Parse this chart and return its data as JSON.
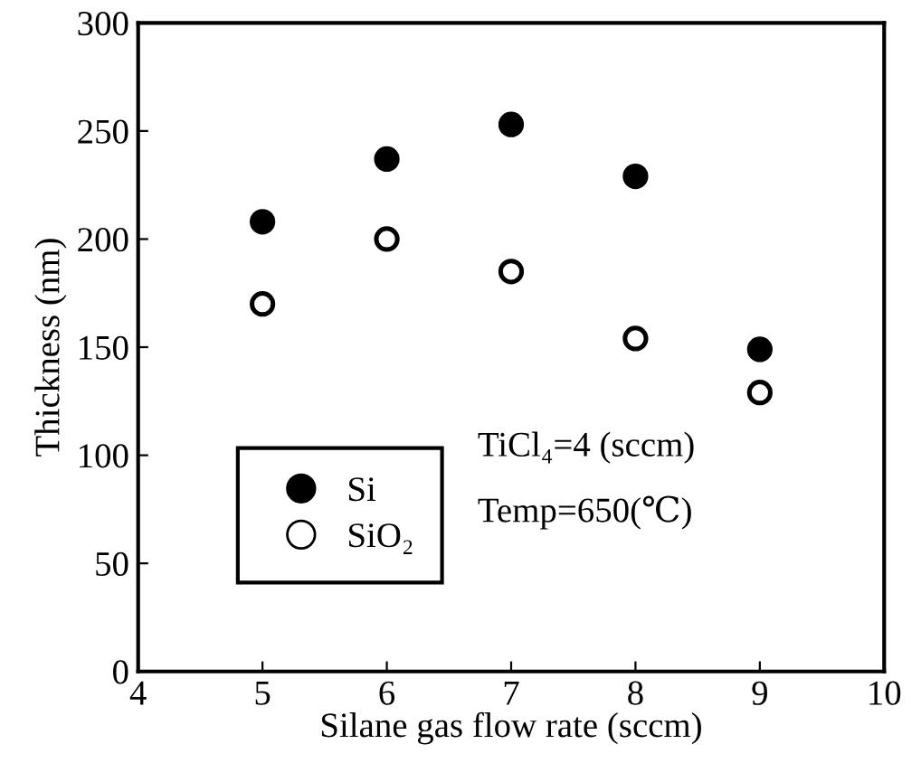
{
  "chart_data": {
    "type": "scatter",
    "xlabel": "Silane gas flow rate (sccm)",
    "ylabel": "Thickness (nm)",
    "x": [
      5,
      6,
      7,
      8,
      9
    ],
    "series": [
      {
        "name": "Si",
        "color": "#000000",
        "marker": "circle",
        "values": [
          208,
          237,
          253,
          229,
          149
        ]
      },
      {
        "name": "SiO₂",
        "color": "#ffffff",
        "marker": "circle",
        "values": [
          170,
          200,
          185,
          154,
          129
        ]
      }
    ],
    "xlim": [
      4,
      10
    ],
    "xticks": [
      4,
      5,
      6,
      7,
      8,
      9,
      10
    ],
    "ylim": [
      0,
      300
    ],
    "yticks": [
      0,
      50,
      100,
      150,
      200,
      250,
      300
    ],
    "grid": false,
    "legend": "bottom left",
    "annotations": [
      "TiCl₄=4 (sccm)",
      "Temp=650(℃)"
    ]
  }
}
